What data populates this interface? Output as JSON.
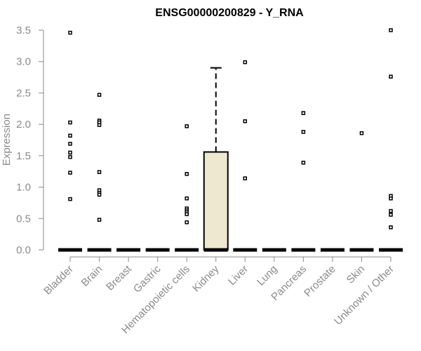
{
  "chart_data": {
    "type": "box",
    "title": "ENSG00000200829 - Y_RNA",
    "xlabel": "",
    "ylabel": "Expression",
    "ylim": [
      0,
      3.5
    ],
    "yticks": [
      0.0,
      0.5,
      1.0,
      1.5,
      2.0,
      2.5,
      3.0,
      3.5
    ],
    "ytick_labels": [
      "0.0",
      "0.5",
      "1.0",
      "1.5",
      "2.0",
      "2.5",
      "3.0",
      "3.5"
    ],
    "grid": false,
    "box_fill": "#ede8cf",
    "categories": [
      "Bladder",
      "Brain",
      "Breast",
      "Gastric",
      "Hematopoietic cells",
      "Kidney",
      "Liver",
      "Lung",
      "Pancreas",
      "Prostate",
      "Skin",
      "Unknown / Other"
    ],
    "boxes": [
      {
        "category": "Bladder",
        "q1": 0,
        "median": 0,
        "q3": 0,
        "whisker_low": 0,
        "whisker_high": 0,
        "outliers": [
          3.46,
          2.03,
          1.82,
          1.69,
          1.55,
          1.48,
          1.23,
          0.81
        ]
      },
      {
        "category": "Brain",
        "q1": 0,
        "median": 0,
        "q3": 0,
        "whisker_low": 0,
        "whisker_high": 0,
        "outliers": [
          2.47,
          2.06,
          2.03,
          1.99,
          1.24,
          0.95,
          0.91,
          0.88,
          0.48
        ]
      },
      {
        "category": "Breast",
        "q1": 0,
        "median": 0,
        "q3": 0,
        "whisker_low": 0,
        "whisker_high": 0,
        "outliers": []
      },
      {
        "category": "Gastric",
        "q1": 0,
        "median": 0,
        "q3": 0,
        "whisker_low": 0,
        "whisker_high": 0,
        "outliers": []
      },
      {
        "category": "Hematopoietic cells",
        "q1": 0,
        "median": 0,
        "q3": 0,
        "whisker_low": 0,
        "whisker_high": 0,
        "outliers": [
          1.97,
          1.21,
          0.82,
          0.66,
          0.63,
          0.6,
          0.57,
          0.44
        ]
      },
      {
        "category": "Kidney",
        "q1": 0,
        "median": 0,
        "q3": 1.56,
        "whisker_low": 0,
        "whisker_high": 2.9,
        "outliers": []
      },
      {
        "category": "Liver",
        "q1": 0,
        "median": 0,
        "q3": 0,
        "whisker_low": 0,
        "whisker_high": 0,
        "outliers": [
          2.99,
          2.05,
          1.14
        ]
      },
      {
        "category": "Lung",
        "q1": 0,
        "median": 0,
        "q3": 0,
        "whisker_low": 0,
        "whisker_high": 0,
        "outliers": []
      },
      {
        "category": "Pancreas",
        "q1": 0,
        "median": 0,
        "q3": 0,
        "whisker_low": 0,
        "whisker_high": 0,
        "outliers": [
          2.18,
          1.88,
          1.39
        ]
      },
      {
        "category": "Prostate",
        "q1": 0,
        "median": 0,
        "q3": 0,
        "whisker_low": 0,
        "whisker_high": 0,
        "outliers": []
      },
      {
        "category": "Skin",
        "q1": 0,
        "median": 0,
        "q3": 0,
        "whisker_low": 0,
        "whisker_high": 0,
        "outliers": [
          1.86
        ]
      },
      {
        "category": "Unknown / Other",
        "q1": 0,
        "median": 0,
        "q3": 0,
        "whisker_low": 0,
        "whisker_high": 0,
        "outliers": [
          3.5,
          2.76,
          0.86,
          0.82,
          0.62,
          0.56,
          0.36
        ]
      }
    ]
  }
}
